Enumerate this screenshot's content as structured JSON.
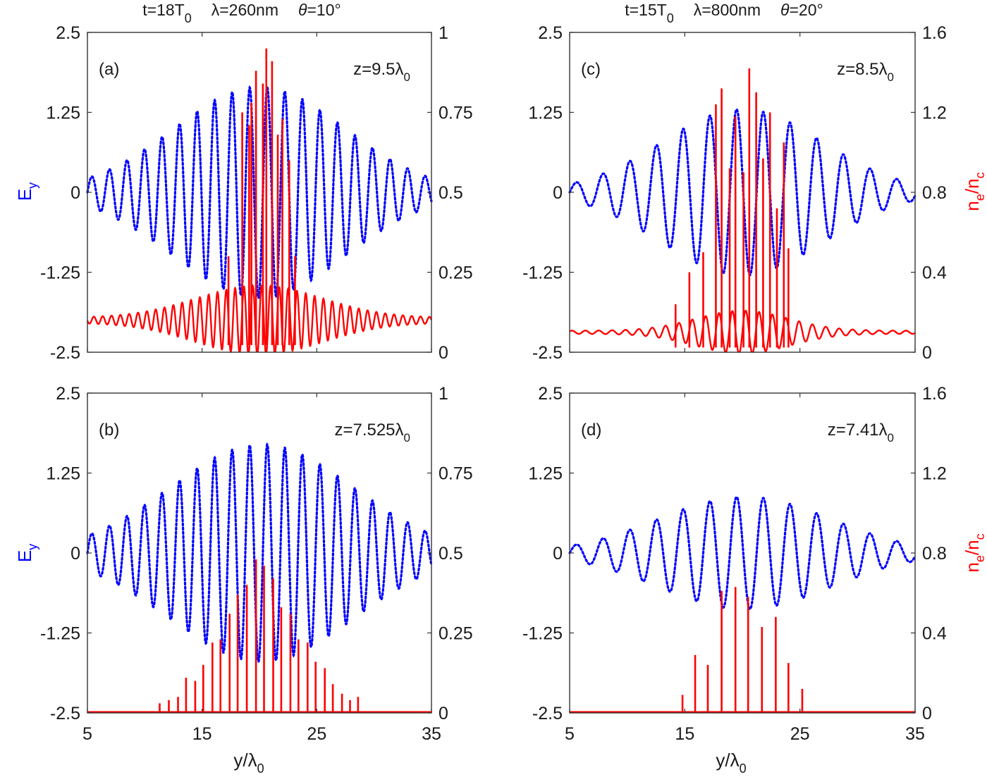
{
  "figure": {
    "columns": [
      {
        "title_parts": {
          "t": "t=18T",
          "t_sub": "0",
          "lambda": "λ=260nm",
          "theta_sym": "θ",
          "theta_val": "=10°"
        }
      },
      {
        "title_parts": {
          "t": "t=15T",
          "t_sub": "0",
          "lambda": "λ=800nm",
          "theta_sym": "θ",
          "theta_val": "=20°"
        }
      }
    ],
    "left_axis_label": {
      "main": "E",
      "sub": "y",
      "color": "#0000ff"
    },
    "right_axis_label": {
      "n": "n",
      "e": "e",
      "slash": "/n",
      "c": "c",
      "color": "#ff0000"
    },
    "x_axis_label": {
      "main": "y/λ",
      "sub": "0"
    },
    "colors": {
      "field": "#0000ff",
      "density": "#ff0000",
      "axes": "#333333"
    }
  },
  "chart_data": [
    {
      "type": "line",
      "panel": "(a)",
      "annotation": {
        "main": "z=9.5λ",
        "sub": "0"
      },
      "title": "t=18T0 λ=260nm θ=10°",
      "xlabel": "y/λ0",
      "ylabel_left": "Ey",
      "ylabel_right": "ne/nc",
      "xlim": [
        5,
        35
      ],
      "ylim_left": [
        -2.5,
        2.5
      ],
      "ylim_right": [
        0,
        1
      ],
      "xticks": [
        "5",
        "15",
        "25",
        "35"
      ],
      "yticks_left": [
        "2.5",
        "1.25",
        "0",
        "-1.25",
        "-2.5"
      ],
      "yticks_right": [
        "1",
        "0.75",
        "0.5",
        "0.25",
        "0"
      ],
      "grid": false,
      "series": [
        {
          "name": "Ey",
          "axis": "left",
          "style": "dotted",
          "color": "#0000ff",
          "model": {
            "kind": "gaussian_wave",
            "center": 20,
            "peak_amplitude": 1.65,
            "sigma": 7.5,
            "period": 1.53,
            "phase_zero_crossing_x": 5
          }
        },
        {
          "name": "ne/nc background",
          "axis": "right",
          "style": "solid",
          "color": "#ff0000",
          "model": {
            "kind": "gaussian_modulated_density",
            "baseline": 0.1,
            "center": 20,
            "peak_modulation": 0.1,
            "sigma": 5.5,
            "period": 0.77
          }
        },
        {
          "name": "ne/nc spikes",
          "axis": "right",
          "style": "solid",
          "color": "#ff0000",
          "x": [
            17.3,
            18.5,
            19.1,
            19.3,
            19.7,
            20.3,
            20.6,
            21.1,
            21.6,
            22.0,
            22.6,
            23.1
          ],
          "values": [
            0.3,
            0.75,
            0.71,
            0.78,
            0.88,
            0.84,
            0.95,
            0.91,
            0.68,
            0.73,
            0.6,
            0.3
          ]
        }
      ]
    },
    {
      "type": "line",
      "panel": "(b)",
      "annotation": {
        "main": "z=7.525λ",
        "sub": "0"
      },
      "xlabel": "y/λ0",
      "ylabel_left": "Ey",
      "ylabel_right": "ne/nc",
      "xlim": [
        5,
        35
      ],
      "ylim_left": [
        -2.5,
        2.5
      ],
      "ylim_right": [
        0,
        1
      ],
      "xticks": [
        "5",
        "15",
        "25",
        "35"
      ],
      "yticks_left": [
        "2.5",
        "1.25",
        "0",
        "-1.25",
        "-2.5"
      ],
      "yticks_right": [
        "1",
        "0.75",
        "0.5",
        "0.25",
        "0"
      ],
      "grid": false,
      "series": [
        {
          "name": "Ey",
          "axis": "left",
          "style": "dotted",
          "color": "#0000ff",
          "model": {
            "kind": "gaussian_wave",
            "center": 20.2,
            "peak_amplitude": 1.7,
            "sigma": 8.0,
            "period": 1.53,
            "phase_zero_crossing_x": 5
          }
        },
        {
          "name": "ne/nc spikes",
          "axis": "right",
          "style": "solid",
          "color": "#ff0000",
          "x": [
            11.3,
            12.1,
            12.9,
            13.6,
            14.4,
            15.1,
            15.9,
            16.6,
            17.4,
            18.1,
            18.9,
            19.7,
            20.4,
            21.2,
            21.9,
            22.7,
            23.4,
            24.2,
            24.9,
            25.7,
            26.4,
            27.2,
            27.9,
            28.6
          ],
          "values": [
            0.03,
            0.04,
            0.05,
            0.11,
            0.1,
            0.15,
            0.22,
            0.23,
            0.31,
            0.37,
            0.4,
            0.48,
            0.46,
            0.42,
            0.33,
            0.31,
            0.23,
            0.22,
            0.16,
            0.14,
            0.09,
            0.06,
            0.04,
            0.05
          ]
        }
      ]
    },
    {
      "type": "line",
      "panel": "(c)",
      "annotation": {
        "main": "z=8.5λ",
        "sub": "0"
      },
      "title": "t=15T0 λ=800nm θ=20°",
      "xlabel": "y/λ0",
      "ylabel_left": "Ey",
      "ylabel_right": "ne/nc",
      "xlim": [
        5,
        35
      ],
      "ylim_left": [
        -2.5,
        2.5
      ],
      "ylim_right": [
        0,
        1.6
      ],
      "xticks": [
        "5",
        "15",
        "25",
        "35"
      ],
      "yticks_left": [
        "2.5",
        "1.25",
        "0",
        "-1.25",
        "-2.5"
      ],
      "yticks_right": [
        "1.6",
        "1.2",
        "0.8",
        "0.4",
        "0"
      ],
      "grid": false,
      "series": [
        {
          "name": "Ey",
          "axis": "left",
          "style": "dotted",
          "color": "#0000ff",
          "model": {
            "kind": "gaussian_wave",
            "center": 20,
            "peak_amplitude": 1.3,
            "sigma": 7.0,
            "period": 2.32,
            "phase_zero_crossing_x": 5
          }
        },
        {
          "name": "ne/nc background",
          "axis": "right",
          "style": "solid",
          "color": "#ff0000",
          "model": {
            "kind": "gaussian_modulated_density",
            "baseline": 0.1,
            "center": 20,
            "peak_modulation": 0.1,
            "sigma": 4.0,
            "period": 1.16
          }
        },
        {
          "name": "ne/nc spikes",
          "axis": "right",
          "style": "solid",
          "color": "#ff0000",
          "x": [
            14.2,
            15.4,
            16.6,
            17.7,
            18.2,
            18.9,
            19.4,
            20.1,
            20.6,
            21.2,
            21.8,
            22.4,
            23.0,
            23.6,
            24.0
          ],
          "values": [
            0.24,
            0.4,
            0.5,
            1.24,
            1.32,
            0.92,
            1.18,
            0.9,
            1.42,
            1.3,
            0.97,
            1.2,
            0.72,
            1.05,
            0.52
          ]
        }
      ]
    },
    {
      "type": "line",
      "panel": "(d)",
      "annotation": {
        "main": "z=7.41λ",
        "sub": "0"
      },
      "xlabel": "y/λ0",
      "ylabel_left": "Ey",
      "ylabel_right": "ne/nc",
      "xlim": [
        5,
        35
      ],
      "ylim_left": [
        -2.5,
        2.5
      ],
      "ylim_right": [
        0,
        1.6
      ],
      "xticks": [
        "5",
        "15",
        "25",
        "35"
      ],
      "yticks_left": [
        "2.5",
        "1.25",
        "0",
        "-1.25",
        "-2.5"
      ],
      "yticks_right": [
        "1.6",
        "1.2",
        "0.8",
        "0.4",
        "0"
      ],
      "grid": false,
      "series": [
        {
          "name": "Ey",
          "axis": "left",
          "style": "dotted",
          "color": "#0000ff",
          "model": {
            "kind": "gaussian_wave",
            "center": 20.2,
            "peak_amplitude": 0.88,
            "sigma": 7.5,
            "period": 2.32,
            "phase_zero_crossing_x": 5
          }
        },
        {
          "name": "ne/nc spikes",
          "axis": "right",
          "style": "solid",
          "color": "#ff0000",
          "x": [
            14.8,
            15.9,
            17.0,
            18.2,
            19.4,
            20.5,
            21.7,
            22.9,
            24.0,
            25.2
          ],
          "values": [
            0.09,
            0.29,
            0.24,
            0.61,
            0.63,
            0.58,
            0.43,
            0.48,
            0.25,
            0.12
          ]
        }
      ]
    }
  ]
}
